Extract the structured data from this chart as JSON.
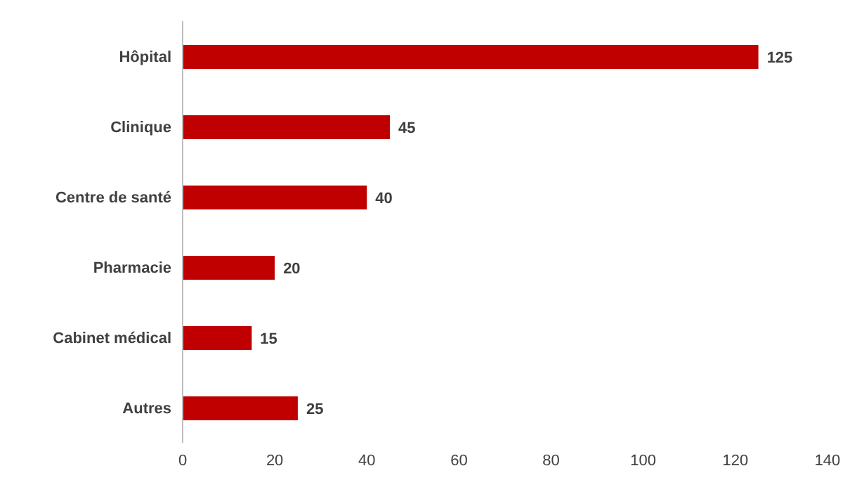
{
  "chart_data": {
    "type": "bar",
    "orientation": "horizontal",
    "categories": [
      "Hôpital",
      "Clinique",
      "Centre de santé",
      "Pharmacie",
      "Cabinet médical",
      "Autres"
    ],
    "values": [
      125,
      45,
      40,
      20,
      15,
      25
    ],
    "color": "#c00000",
    "xlim": [
      0,
      140
    ],
    "xticks": [
      0,
      20,
      40,
      60,
      80,
      100,
      120,
      140
    ],
    "data_labels": true
  }
}
